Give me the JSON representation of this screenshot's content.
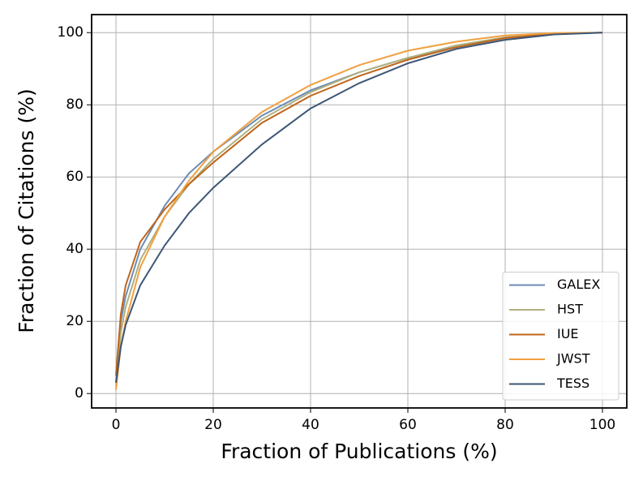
{
  "chart_data": {
    "type": "line",
    "xlabel": "Fraction of Publications (%)",
    "ylabel": "Fraction of Citations (%)",
    "x": [
      0,
      1,
      2,
      5,
      10,
      15,
      20,
      30,
      40,
      50,
      60,
      70,
      80,
      90,
      100
    ],
    "series": [
      {
        "name": "GALEX",
        "color": "#6b8bb5",
        "values": [
          3,
          20,
          27,
          40,
          52,
          61,
          67,
          77,
          84,
          89,
          93,
          96,
          98.5,
          99.7,
          100
        ]
      },
      {
        "name": "HST",
        "color": "#b0b07e",
        "values": [
          2,
          17,
          24,
          37,
          49,
          58,
          65,
          76,
          83.5,
          89,
          93,
          96.5,
          98.7,
          99.8,
          100
        ]
      },
      {
        "name": "IUE",
        "color": "#c0651a",
        "values": [
          5,
          22,
          30,
          42,
          51,
          58,
          64,
          75,
          82.5,
          88,
          92.5,
          96,
          98.5,
          99.7,
          100
        ]
      },
      {
        "name": "JWST",
        "color": "#f0a040",
        "values": [
          1,
          13,
          20,
          35,
          49,
          59,
          67,
          78,
          85.5,
          91,
          95,
          97.5,
          99.2,
          99.9,
          100
        ]
      },
      {
        "name": "TESS",
        "color": "#3d5676",
        "values": [
          3,
          13,
          19,
          30,
          41,
          50,
          57,
          69,
          79,
          86,
          91.5,
          95.5,
          98,
          99.5,
          100
        ]
      }
    ],
    "xlim": [
      -5,
      105
    ],
    "ylim": [
      -4,
      105
    ],
    "xticks": [
      0,
      20,
      40,
      60,
      80,
      100
    ],
    "yticks": [
      0,
      20,
      40,
      60,
      80,
      100
    ],
    "grid": true,
    "legend": "lower right"
  }
}
